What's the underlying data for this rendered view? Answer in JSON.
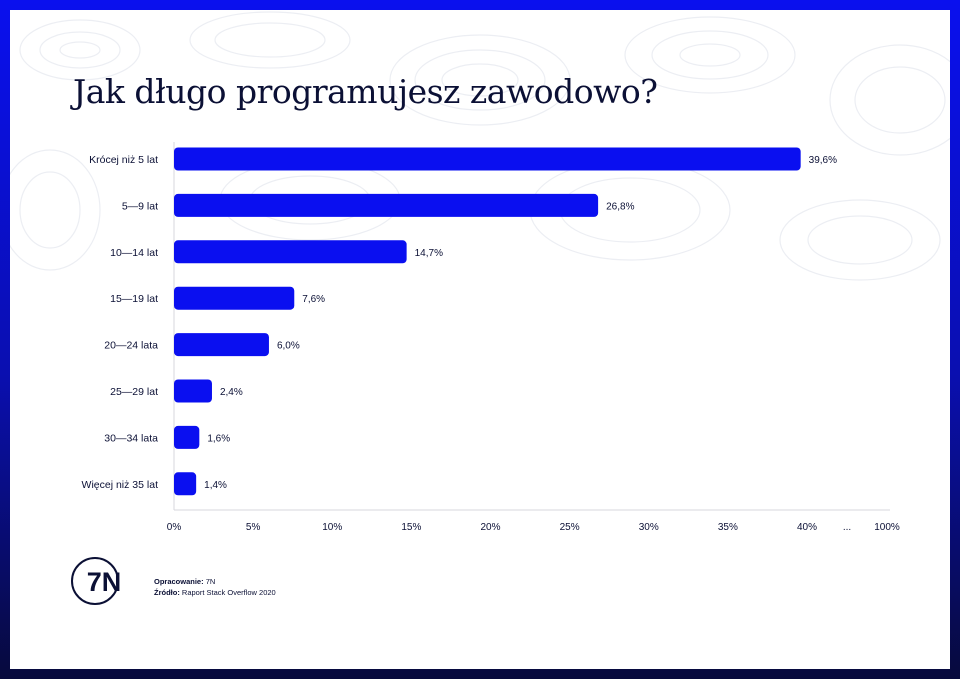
{
  "title": "Jak długo programujesz zawodowo?",
  "colors": {
    "bar": "#0a0ff0",
    "text": "#0b1035",
    "frame": "#0a10ee",
    "axis": "#d7d7de"
  },
  "chart_data": {
    "type": "bar",
    "orientation": "horizontal",
    "title": "Jak długo programujesz zawodowo?",
    "categories": [
      "Krócej niż 5 lat",
      "5—9 lat",
      "10—14 lat",
      "15—19 lat",
      "20—24 lata",
      "25—29 lat",
      "30—34 lata",
      "Więcej niż 35 lat"
    ],
    "values": [
      39.6,
      26.8,
      14.7,
      7.6,
      6.0,
      2.4,
      1.6,
      1.4
    ],
    "value_labels": [
      "39,6%",
      "26,8%",
      "14,7%",
      "7,6%",
      "6,0%",
      "2,4%",
      "1,6%",
      "1,4%"
    ],
    "x_ticks": [
      {
        "value": 0,
        "label": "0%"
      },
      {
        "value": 5,
        "label": "5%"
      },
      {
        "value": 10,
        "label": "10%"
      },
      {
        "value": 15,
        "label": "15%"
      },
      {
        "value": 20,
        "label": "20%"
      },
      {
        "value": 25,
        "label": "25%"
      },
      {
        "value": 30,
        "label": "30%"
      },
      {
        "value": 35,
        "label": "35%"
      },
      {
        "value": 40,
        "label": "40%"
      }
    ],
    "axis_break_label": "...",
    "axis_end_label": "100%",
    "xlim": [
      0,
      40
    ],
    "grid": false
  },
  "footer": {
    "logo_text": "7N",
    "credit_label": "Opracowanie:",
    "credit_value": "7N",
    "source_label": "Źródło:",
    "source_value": "Raport Stack Overflow 2020"
  }
}
